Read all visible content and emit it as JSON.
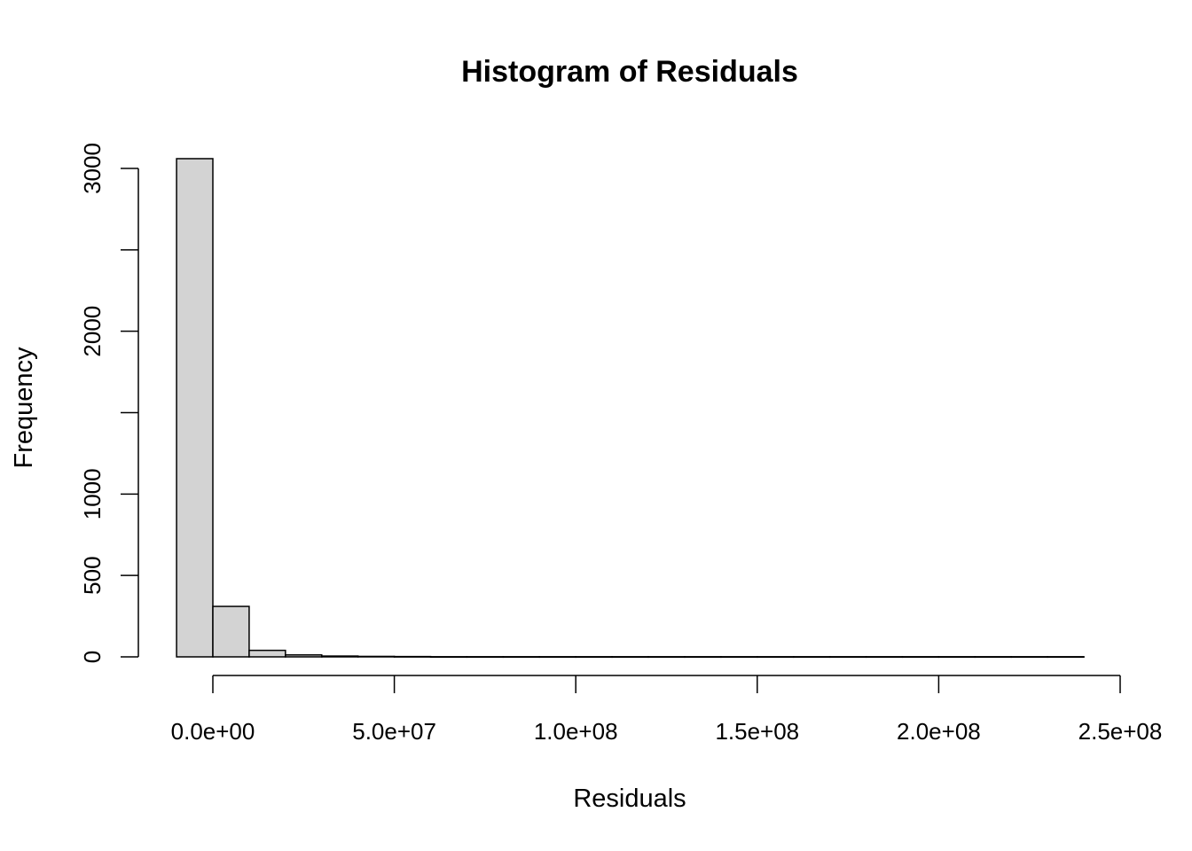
{
  "chart_data": {
    "type": "bar",
    "subtype": "histogram",
    "title": "Histogram of Residuals",
    "xlabel": "Residuals",
    "ylabel": "Frequency",
    "bin_width": 10000000,
    "bin_start": -10000000,
    "values": [
      3060,
      310,
      40,
      12,
      5,
      3,
      2,
      1,
      1,
      1,
      1,
      1,
      1,
      1,
      1,
      1,
      1,
      1,
      1,
      1,
      1,
      1,
      1,
      1,
      1
    ],
    "xlim": [
      -10000000,
      250000000
    ],
    "ylim": [
      0,
      3060
    ],
    "x_ticks": [
      0,
      50000000,
      100000000,
      150000000,
      200000000,
      250000000
    ],
    "x_tick_labels": [
      "0.0e+00",
      "5.0e+07",
      "1.0e+08",
      "1.5e+08",
      "2.0e+08",
      "2.5e+08"
    ],
    "y_ticks": [
      0,
      500,
      1000,
      1500,
      2000,
      2500,
      3000
    ],
    "y_tick_labels": [
      "0",
      "500",
      "1000",
      "",
      "2000",
      "",
      "3000"
    ],
    "colors": {
      "bar_fill": "#d3d3d3",
      "bar_stroke": "#000000"
    },
    "grid": false,
    "legend": "none"
  }
}
